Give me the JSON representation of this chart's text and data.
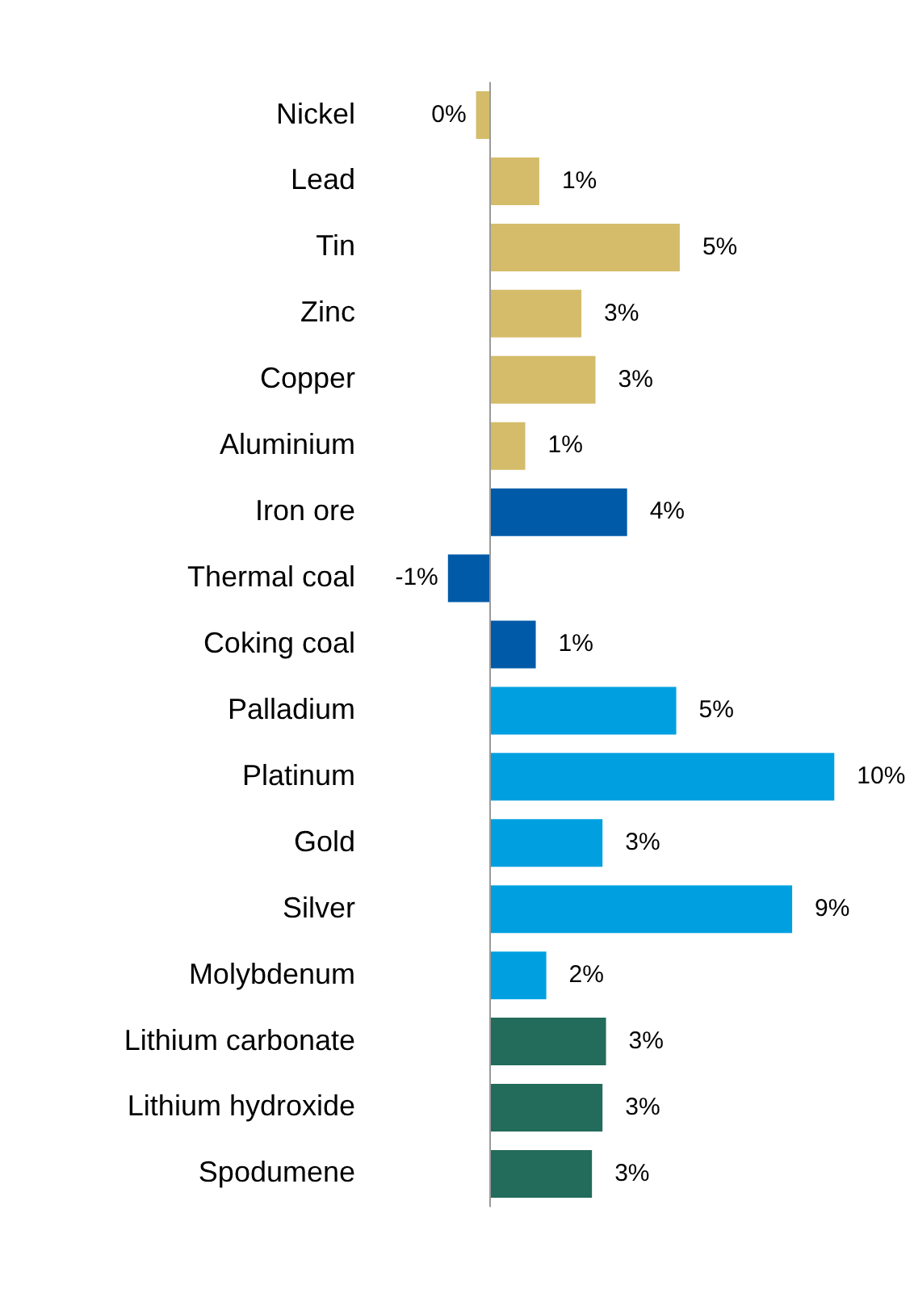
{
  "chart_data": {
    "type": "bar",
    "orientation": "horizontal",
    "categories": [
      "Nickel",
      "Lead",
      "Tin",
      "Zinc",
      "Copper",
      "Aluminium",
      "Iron ore",
      "Thermal coal",
      "Coking coal",
      "Palladium",
      "Platinum",
      "Gold",
      "Silver",
      "Molybdenum",
      "Lithium carbonate",
      "Lithium hydroxide",
      "Spodumene"
    ],
    "values": [
      -0.4,
      1.4,
      5.4,
      2.6,
      3.0,
      1.0,
      3.9,
      -1.2,
      1.3,
      5.3,
      9.8,
      3.2,
      8.6,
      1.6,
      3.3,
      3.2,
      2.9
    ],
    "colors": [
      "#d4bc6a",
      "#d4bc6a",
      "#d4bc6a",
      "#d4bc6a",
      "#d4bc6a",
      "#d4bc6a",
      "#005aa8",
      "#005aa8",
      "#005aa8",
      "#00a0e0",
      "#00a0e0",
      "#00a0e0",
      "#00a0e0",
      "#00a0e0",
      "#236b5a",
      "#236b5a",
      "#236b5a"
    ],
    "value_labels": [
      "0%",
      "1%",
      "5%",
      "3%",
      "3%",
      "1%",
      "4%",
      "-1%",
      "1%",
      "5%",
      "10%",
      "3%",
      "9%",
      "2%",
      "3%",
      "3%",
      "3%"
    ],
    "tick_labels": "y",
    "grid": false,
    "legend": false
  }
}
